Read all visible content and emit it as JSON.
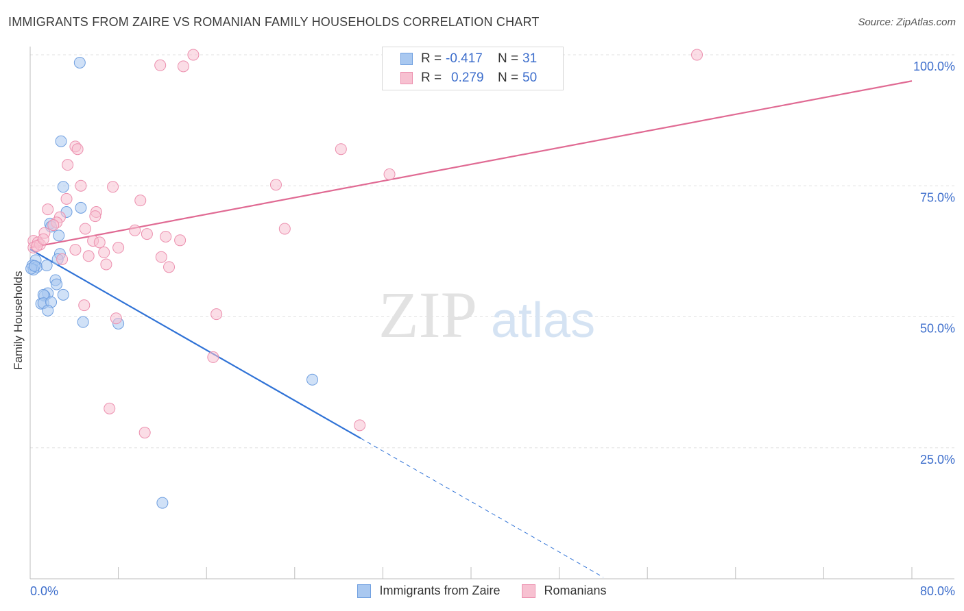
{
  "header": {
    "title": "IMMIGRANTS FROM ZAIRE VS ROMANIAN FAMILY HOUSEHOLDS CORRELATION CHART",
    "source": "Source: ZipAtlas.com"
  },
  "watermark": {
    "zip": "ZIP",
    "atlas": "atlas"
  },
  "legend": {
    "rows": [
      {
        "r_label": "R =",
        "r_value": "-0.417",
        "n_label": "N =",
        "n_value": "31",
        "color": "#a9c8f0",
        "border": "#6f9fe0"
      },
      {
        "r_label": "R =",
        "r_value": "0.279",
        "n_label": "N =",
        "n_value": "50",
        "color": "#f7c1d1",
        "border": "#ec8fae"
      }
    ]
  },
  "bottom_legend": [
    {
      "label": "Immigrants from Zaire",
      "color": "#a9c8f0",
      "border": "#6f9fe0"
    },
    {
      "label": "Romanians",
      "color": "#f7c1d1",
      "border": "#ec8fae"
    }
  ],
  "chart_data": {
    "type": "scatter",
    "title": "IMMIGRANTS FROM ZAIRE VS ROMANIAN FAMILY HOUSEHOLDS CORRELATION CHART",
    "xlabel": "",
    "ylabel": "Family Households",
    "xlim": [
      0,
      80
    ],
    "ylim": [
      0,
      100
    ],
    "x_tick_labels": [
      "0.0%",
      "80.0%"
    ],
    "y_tick_labels": [
      "100.0%",
      "75.0%",
      "50.0%",
      "25.0%"
    ],
    "y_tick_values": [
      100,
      75,
      50,
      25
    ],
    "grid": true,
    "series": [
      {
        "name": "Immigrants from Zaire",
        "color": "#a9c8f0",
        "stroke": "#6f9fe0",
        "line_color": "#2f72d6",
        "trend": {
          "x0": 0,
          "y0": 62.9,
          "x1": 30,
          "y1": 26.8,
          "dash_to_x": 52,
          "dash_to_y": 0.3
        },
        "points": [
          [
            4.5,
            98.5
          ],
          [
            2.8,
            83.5
          ],
          [
            3.0,
            74.8
          ],
          [
            3.3,
            70.0
          ],
          [
            4.6,
            70.8
          ],
          [
            1.8,
            67.8
          ],
          [
            1.9,
            67.2
          ],
          [
            2.6,
            65.5
          ],
          [
            2.7,
            62.0
          ],
          [
            2.5,
            61.0
          ],
          [
            0.5,
            60.8
          ],
          [
            0.2,
            59.8
          ],
          [
            0.6,
            59.5
          ],
          [
            1.5,
            59.8
          ],
          [
            0.3,
            59.0
          ],
          [
            0.1,
            59.2
          ],
          [
            2.3,
            57.0
          ],
          [
            2.4,
            56.2
          ],
          [
            1.6,
            54.5
          ],
          [
            1.3,
            54.0
          ],
          [
            1.2,
            54.2
          ],
          [
            3.0,
            54.2
          ],
          [
            1.0,
            52.5
          ],
          [
            1.2,
            52.6
          ],
          [
            1.9,
            52.8
          ],
          [
            1.6,
            51.2
          ],
          [
            4.8,
            49.0
          ],
          [
            8.0,
            48.7
          ],
          [
            25.6,
            38.0
          ],
          [
            12.0,
            14.5
          ],
          [
            0.4,
            59.7
          ]
        ]
      },
      {
        "name": "Romanians",
        "color": "#f7c1d1",
        "stroke": "#ec8fae",
        "line_color": "#e06a93",
        "trend": {
          "x0": 0,
          "y0": 63.2,
          "x1": 80,
          "y1": 95.0
        },
        "points": [
          [
            14.8,
            100.0
          ],
          [
            60.5,
            100.0
          ],
          [
            11.8,
            98.0
          ],
          [
            13.9,
            97.8
          ],
          [
            4.1,
            82.5
          ],
          [
            4.3,
            82.0
          ],
          [
            28.2,
            82.0
          ],
          [
            3.4,
            79.0
          ],
          [
            32.6,
            77.2
          ],
          [
            4.6,
            75.0
          ],
          [
            7.5,
            74.8
          ],
          [
            22.3,
            75.2
          ],
          [
            10.0,
            72.2
          ],
          [
            3.3,
            72.5
          ],
          [
            1.6,
            70.5
          ],
          [
            6.0,
            70.0
          ],
          [
            5.9,
            69.2
          ],
          [
            2.7,
            69.0
          ],
          [
            2.4,
            68.0
          ],
          [
            2.1,
            67.5
          ],
          [
            5.0,
            66.8
          ],
          [
            23.1,
            66.8
          ],
          [
            9.5,
            66.5
          ],
          [
            1.3,
            66.0
          ],
          [
            10.6,
            65.8
          ],
          [
            12.3,
            65.3
          ],
          [
            13.6,
            64.6
          ],
          [
            5.7,
            64.5
          ],
          [
            6.3,
            64.2
          ],
          [
            0.3,
            64.5
          ],
          [
            0.7,
            64.2
          ],
          [
            0.3,
            63.2
          ],
          [
            0.9,
            63.8
          ],
          [
            0.6,
            63.5
          ],
          [
            8.0,
            63.2
          ],
          [
            4.1,
            62.8
          ],
          [
            6.7,
            62.3
          ],
          [
            5.3,
            61.6
          ],
          [
            11.9,
            61.4
          ],
          [
            2.9,
            61.0
          ],
          [
            6.9,
            60.0
          ],
          [
            12.6,
            59.5
          ],
          [
            4.9,
            52.2
          ],
          [
            16.9,
            50.5
          ],
          [
            7.8,
            49.7
          ],
          [
            16.6,
            42.3
          ],
          [
            7.2,
            32.5
          ],
          [
            29.9,
            29.3
          ],
          [
            10.4,
            27.9
          ],
          [
            1.2,
            64.8
          ]
        ]
      }
    ]
  }
}
